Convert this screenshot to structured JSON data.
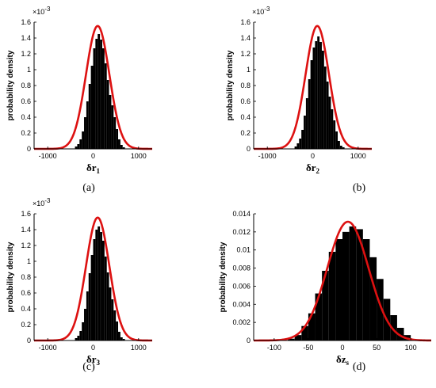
{
  "chart_data": [
    {
      "type": "bar",
      "panel_label": "(a)",
      "xlabel_main": "δr",
      "xlabel_sub": "1",
      "ylabel": "probability density",
      "xlim": [
        -1300,
        1300
      ],
      "ylim": [
        0,
        0.0016
      ],
      "xticks": [
        -1000,
        0,
        1000
      ],
      "xtick_labels": [
        "-1000",
        "0",
        "1000"
      ],
      "yticks": [
        0,
        0.0002,
        0.0004,
        0.0006,
        0.0008,
        0.001,
        0.0012,
        0.0014,
        0.0016
      ],
      "ytick_labels": [
        "0",
        "0.2",
        "0.4",
        "0.6",
        "0.8",
        "1",
        "1.2",
        "1.4",
        "1.6"
      ],
      "y_multiplier_base": "×10",
      "y_multiplier_exp": "-3",
      "histogram": {
        "color": "#000000",
        "bin_edges": [
          -400,
          -350,
          -300,
          -250,
          -200,
          -150,
          -100,
          -50,
          0,
          50,
          100,
          150,
          200,
          250,
          300,
          350,
          400,
          450,
          500,
          550,
          600,
          650,
          700
        ],
        "densities": [
          3e-05,
          6e-05,
          0.00012,
          0.00022,
          0.0004,
          0.0006,
          0.00082,
          0.00105,
          0.00127,
          0.00139,
          0.00145,
          0.00138,
          0.00127,
          0.00108,
          0.00087,
          0.00068,
          0.00055,
          0.0004,
          0.00025,
          0.00012,
          5e-05,
          2e-05
        ]
      },
      "fit_curve": {
        "type": "normal_pdf",
        "mean": 100,
        "std": 257,
        "color": "#dd1111"
      }
    },
    {
      "type": "bar",
      "panel_label": "(b)",
      "xlabel_main": "δr",
      "xlabel_sub": "2",
      "ylabel": "probability density",
      "xlim": [
        -1300,
        1300
      ],
      "ylim": [
        0,
        0.0016
      ],
      "xticks": [
        -1000,
        0,
        1000
      ],
      "xtick_labels": [
        "-1000",
        "0",
        "1000"
      ],
      "yticks": [
        0,
        0.0002,
        0.0004,
        0.0006,
        0.0008,
        0.001,
        0.0012,
        0.0014,
        0.0016
      ],
      "ytick_labels": [
        "0",
        "0.2",
        "0.4",
        "0.6",
        "0.8",
        "1",
        "1.2",
        "1.4",
        "1.6"
      ],
      "y_multiplier_base": "×10",
      "y_multiplier_exp": "-3",
      "histogram": {
        "color": "#000000",
        "bin_edges": [
          -400,
          -350,
          -300,
          -250,
          -200,
          -150,
          -100,
          -50,
          0,
          50,
          100,
          150,
          200,
          250,
          300,
          350,
          400,
          450,
          500,
          550,
          600,
          650,
          700
        ],
        "densities": [
          3e-05,
          7e-05,
          0.00013,
          0.00024,
          0.00042,
          0.00064,
          0.00088,
          0.00112,
          0.00128,
          0.00136,
          0.00142,
          0.00135,
          0.00124,
          0.00104,
          0.00085,
          0.00066,
          0.0005,
          0.00036,
          0.00022,
          0.0001,
          4e-05,
          2e-05
        ]
      },
      "fit_curve": {
        "type": "normal_pdf",
        "mean": 100,
        "std": 257,
        "color": "#dd1111"
      }
    },
    {
      "type": "bar",
      "panel_label": "(c)",
      "xlabel_main": "δr",
      "xlabel_sub": "3",
      "ylabel": "probability density",
      "xlim": [
        -1300,
        1300
      ],
      "ylim": [
        0,
        0.0016
      ],
      "xticks": [
        -1000,
        0,
        1000
      ],
      "xtick_labels": [
        "-1000",
        "0",
        "1000"
      ],
      "yticks": [
        0,
        0.0002,
        0.0004,
        0.0006,
        0.0008,
        0.001,
        0.0012,
        0.0014,
        0.0016
      ],
      "ytick_labels": [
        "0",
        "0.2",
        "0.4",
        "0.6",
        "0.8",
        "1",
        "1.2",
        "1.4",
        "1.6"
      ],
      "y_multiplier_base": "×10",
      "y_multiplier_exp": "-3",
      "histogram": {
        "color": "#000000",
        "bin_edges": [
          -400,
          -350,
          -300,
          -250,
          -200,
          -150,
          -100,
          -50,
          0,
          50,
          100,
          150,
          200,
          250,
          300,
          350,
          400,
          450,
          500,
          550,
          600,
          650,
          700
        ],
        "densities": [
          3e-05,
          6e-05,
          0.00012,
          0.00023,
          0.0004,
          0.00062,
          0.00085,
          0.00108,
          0.00128,
          0.0014,
          0.00144,
          0.00137,
          0.00126,
          0.00106,
          0.00086,
          0.00067,
          0.00052,
          0.00038,
          0.00024,
          0.00011,
          4e-05,
          2e-05
        ]
      },
      "fit_curve": {
        "type": "normal_pdf",
        "mean": 100,
        "std": 257,
        "color": "#dd1111"
      }
    },
    {
      "type": "bar",
      "panel_label": "(d)",
      "xlabel_main": "δz",
      "xlabel_sub": "s",
      "ylabel": "probability density",
      "xlim": [
        -130,
        130
      ],
      "ylim": [
        0,
        0.014
      ],
      "xticks": [
        -100,
        -50,
        0,
        50,
        100
      ],
      "xtick_labels": [
        "-100",
        "-50",
        "0",
        "50",
        "100"
      ],
      "yticks": [
        0,
        0.002,
        0.004,
        0.006,
        0.008,
        0.01,
        0.012,
        0.014
      ],
      "ytick_labels": [
        "0",
        "0.002",
        "0.004",
        "0.006",
        "0.008",
        "0.01",
        "0.012",
        "0.014"
      ],
      "y_multiplier_base": "",
      "y_multiplier_exp": "",
      "histogram": {
        "color": "#000000",
        "bin_edges": [
          -80,
          -70,
          -60,
          -50,
          -40,
          -30,
          -20,
          -10,
          0,
          10,
          20,
          30,
          40,
          50,
          60,
          70,
          80,
          90,
          100
        ],
        "densities": [
          0.0002,
          0.0006,
          0.0016,
          0.003,
          0.0052,
          0.0077,
          0.0098,
          0.0112,
          0.012,
          0.0126,
          0.0123,
          0.0112,
          0.0092,
          0.0068,
          0.0046,
          0.0028,
          0.0014,
          0.0006
        ]
      },
      "fit_curve": {
        "type": "normal_pdf",
        "mean": 8,
        "std": 30.4,
        "color": "#dd1111"
      }
    }
  ]
}
